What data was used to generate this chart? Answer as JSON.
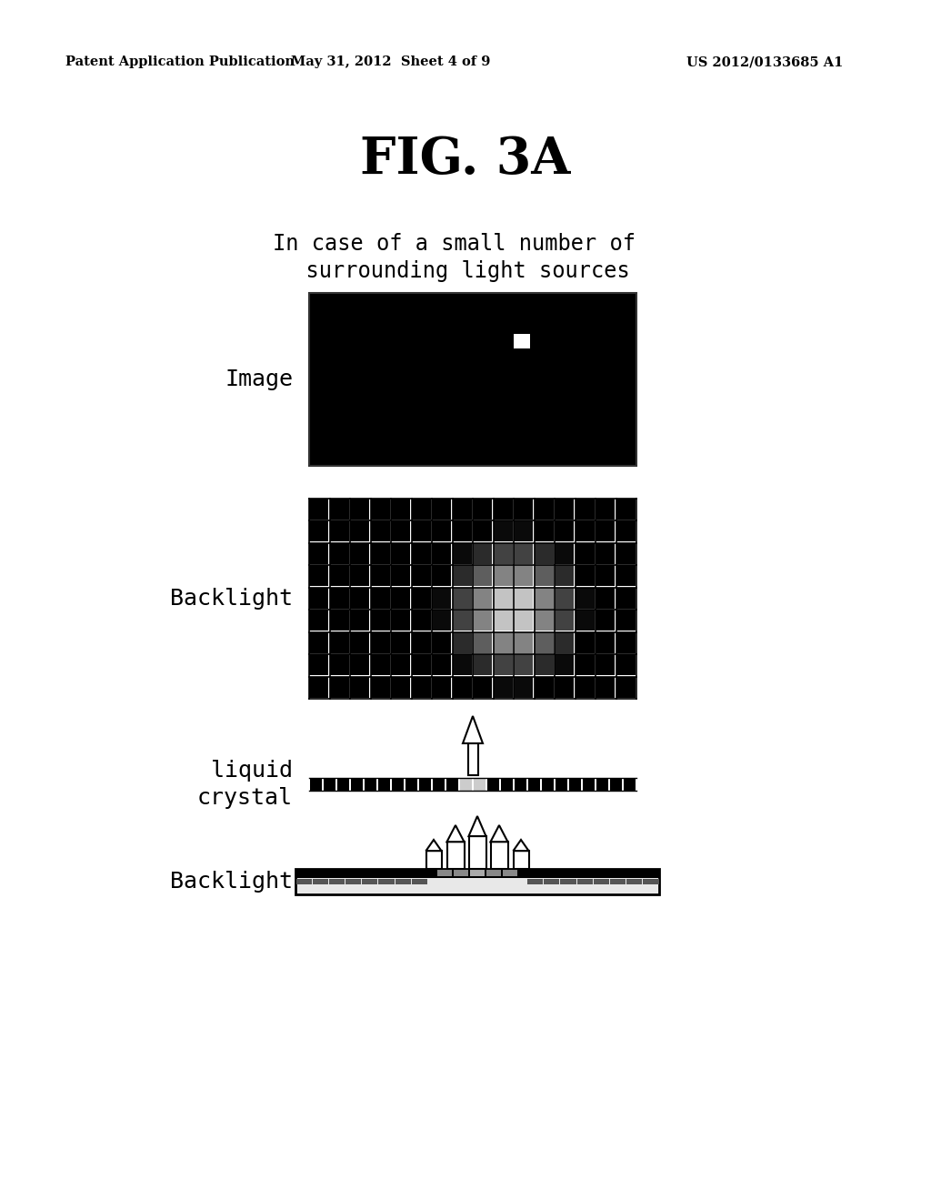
{
  "fig_title": "FIG. 3A",
  "header_left": "Patent Application Publication",
  "header_mid": "May 31, 2012  Sheet 4 of 9",
  "header_right": "US 2012/0133685 A1",
  "subtitle_line1": "In case of a small number of",
  "subtitle_line2": "  surrounding light sources",
  "label_image": "Image",
  "label_backlight1": "Backlight",
  "label_liquid_crystal": "liquid\ncrystal",
  "label_backlight2": "Backlight",
  "bg_color": "#ffffff",
  "black": "#000000",
  "white": "#ffffff"
}
